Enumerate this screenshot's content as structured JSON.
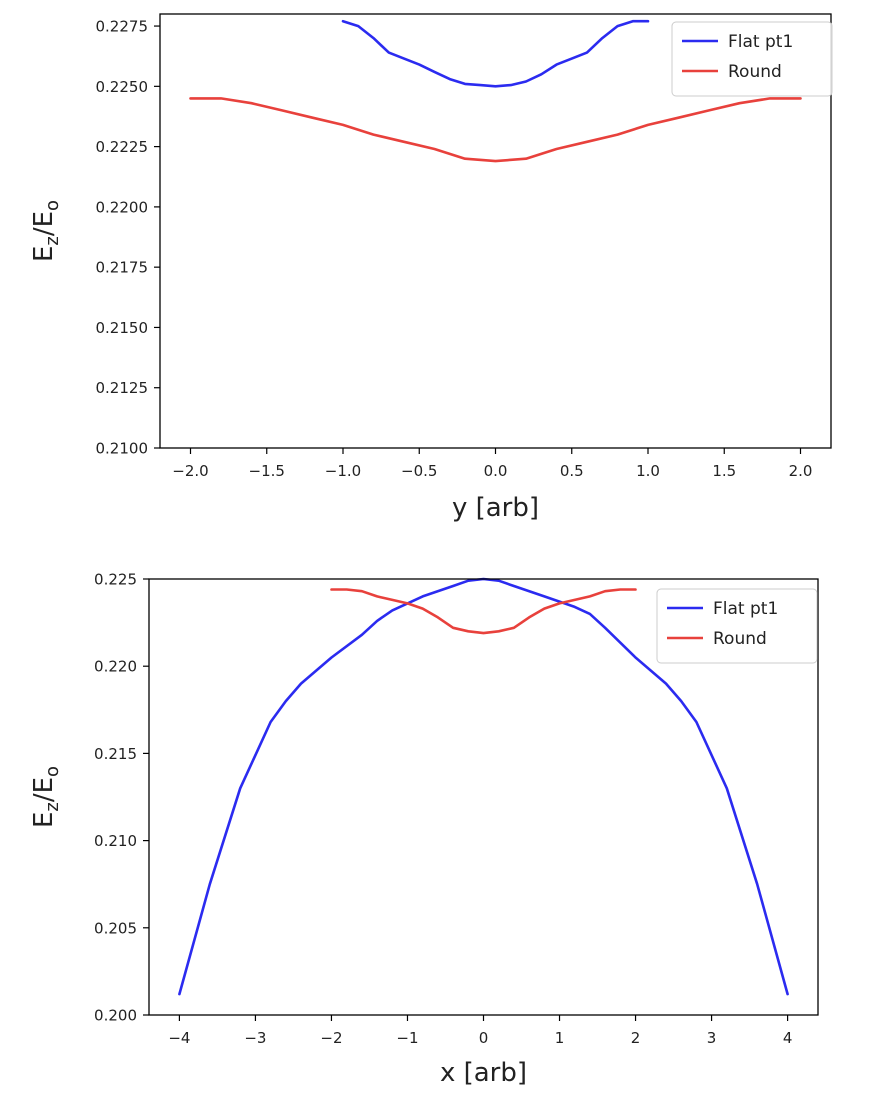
{
  "chart_data": [
    {
      "type": "line",
      "xlabel": "y [arb]",
      "ylabel_main": "E",
      "ylabel_sub1": "z",
      "ylabel_mid": "/E",
      "ylabel_sub2": "o",
      "xlim": [
        -2.2,
        2.2
      ],
      "ylim": [
        0.21,
        0.228
      ],
      "xticks": [
        -2.0,
        -1.5,
        -1.0,
        -0.5,
        0.0,
        0.5,
        1.0,
        1.5,
        2.0
      ],
      "xtick_labels": [
        "−2.0",
        "−1.5",
        "−1.0",
        "−0.5",
        "0.0",
        "0.5",
        "1.0",
        "1.5",
        "2.0"
      ],
      "yticks": [
        0.21,
        0.2125,
        0.215,
        0.2175,
        0.22,
        0.2225,
        0.225,
        0.2275
      ],
      "ytick_labels": [
        "0.2100",
        "0.2125",
        "0.2150",
        "0.2175",
        "0.2200",
        "0.2225",
        "0.2250",
        "0.2275"
      ],
      "grid": false,
      "legend_position": "top-right",
      "series": [
        {
          "name": "Flat pt1",
          "color": "#2b2bf0",
          "x": [
            -1.0,
            -0.9,
            -0.8,
            -0.7,
            -0.6,
            -0.5,
            -0.4,
            -0.3,
            -0.2,
            -0.1,
            0.0,
            0.1,
            0.2,
            0.3,
            0.4,
            0.5,
            0.6,
            0.7,
            0.8,
            0.9,
            1.0
          ],
          "y": [
            0.2277,
            0.2275,
            0.227,
            0.2264,
            0.22615,
            0.2259,
            0.2256,
            0.2253,
            0.2251,
            0.22505,
            0.225,
            0.22505,
            0.2252,
            0.2255,
            0.2259,
            0.22615,
            0.2264,
            0.227,
            0.2275,
            0.2277,
            0.2277
          ]
        },
        {
          "name": "Round",
          "color": "#e8413c",
          "x": [
            -2.0,
            -1.8,
            -1.6,
            -1.4,
            -1.2,
            -1.0,
            -0.8,
            -0.6,
            -0.4,
            -0.2,
            0.0,
            0.2,
            0.4,
            0.6,
            0.8,
            1.0,
            1.2,
            1.4,
            1.6,
            1.8,
            2.0
          ],
          "y": [
            0.2245,
            0.2245,
            0.2243,
            0.224,
            0.2237,
            0.2234,
            0.223,
            0.2227,
            0.2224,
            0.222,
            0.2219,
            0.222,
            0.2224,
            0.2227,
            0.223,
            0.2234,
            0.2237,
            0.224,
            0.2243,
            0.2245,
            0.2245
          ]
        }
      ]
    },
    {
      "type": "line",
      "xlabel": "x [arb]",
      "ylabel_main": "E",
      "ylabel_sub1": "z",
      "ylabel_mid": "/E",
      "ylabel_sub2": "o",
      "xlim": [
        -4.4,
        4.4
      ],
      "ylim": [
        0.2,
        0.225
      ],
      "xticks": [
        -4,
        -3,
        -2,
        -1,
        0,
        1,
        2,
        3,
        4
      ],
      "xtick_labels": [
        "−4",
        "−3",
        "−2",
        "−1",
        "0",
        "1",
        "2",
        "3",
        "4"
      ],
      "yticks": [
        0.2,
        0.205,
        0.21,
        0.215,
        0.22,
        0.225
      ],
      "ytick_labels": [
        "0.200",
        "0.205",
        "0.210",
        "0.215",
        "0.220",
        "0.225"
      ],
      "grid": false,
      "legend_position": "top-right",
      "series": [
        {
          "name": "Flat pt1",
          "color": "#2b2bf0",
          "x": [
            -4.0,
            -3.6,
            -3.2,
            -2.8,
            -2.6,
            -2.4,
            -2.0,
            -1.6,
            -1.4,
            -1.2,
            -0.8,
            -0.4,
            -0.2,
            0.0,
            0.2,
            0.4,
            0.8,
            1.2,
            1.4,
            1.6,
            2.0,
            2.4,
            2.6,
            2.8,
            3.2,
            3.6,
            4.0
          ],
          "y": [
            0.2012,
            0.2075,
            0.213,
            0.2168,
            0.218,
            0.219,
            0.2205,
            0.2218,
            0.2226,
            0.2232,
            0.224,
            0.2246,
            0.2249,
            0.225,
            0.2249,
            0.2246,
            0.224,
            0.2234,
            0.223,
            0.2222,
            0.2205,
            0.219,
            0.218,
            0.2168,
            0.213,
            0.2075,
            0.2012
          ]
        },
        {
          "name": "Round",
          "color": "#e8413c",
          "x": [
            -2.0,
            -1.8,
            -1.6,
            -1.4,
            -1.2,
            -1.0,
            -0.8,
            -0.6,
            -0.4,
            -0.2,
            0.0,
            0.2,
            0.4,
            0.6,
            0.8,
            1.0,
            1.2,
            1.4,
            1.6,
            1.8,
            2.0
          ],
          "y": [
            0.2244,
            0.2244,
            0.2243,
            0.224,
            0.2238,
            0.2236,
            0.2233,
            0.2228,
            0.2222,
            0.222,
            0.2219,
            0.222,
            0.2222,
            0.2228,
            0.2233,
            0.2236,
            0.2238,
            0.224,
            0.2243,
            0.2244,
            0.2244
          ]
        }
      ]
    }
  ]
}
